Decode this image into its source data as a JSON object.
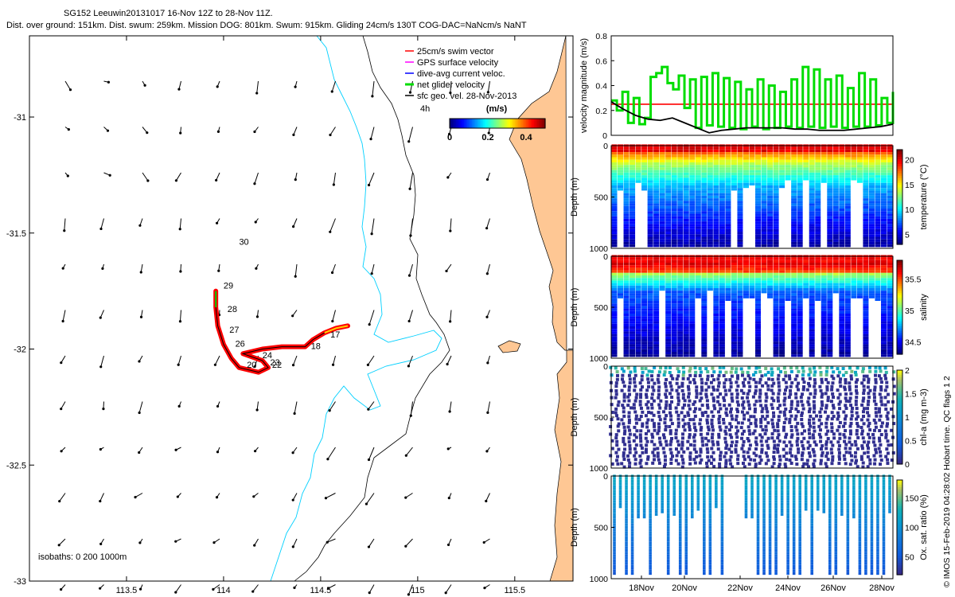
{
  "header": {
    "title_line1": "SG152 Leeuwin20131017 16-Nov 12Z to 28-Nov 11Z.",
    "title_line2": "Dist. over ground: 151km. Dist. swum: 259km. Mission DOG: 801km. Swum: 915km. Gliding 24cm/s 130T COG-DAC=NaNcm/s NaNT"
  },
  "chart_data": [
    {
      "type": "map",
      "name": "glider-track-map",
      "xlim": [
        113.0,
        115.8
      ],
      "ylim": [
        -33.0,
        -30.65
      ],
      "x_ticks": [
        "113.5",
        "114",
        "114.5",
        "115",
        "115.5"
      ],
      "y_ticks": [
        "-31",
        "-31.5",
        "-32",
        "-32.5",
        "-33"
      ],
      "legend": [
        {
          "label": "25cm/s swim vector",
          "color": "#ff0000"
        },
        {
          "label": "GPS surface velocity",
          "color": "#ff00ff"
        },
        {
          "label": "dive-avg current veloc.",
          "color": "#0000ff"
        },
        {
          "label": "net glider velocity",
          "color": "#00dd00"
        },
        {
          "label": "sfc geo. vel. 28-Nov-2013",
          "color": "#000000"
        }
      ],
      "legend_note": "4h",
      "colorbar": {
        "label": "(m/s)",
        "ticks": [
          "0",
          "0.2",
          "0.4"
        ],
        "range": [
          0,
          0.5
        ]
      },
      "isobaths_label": "isobaths: 0   200  1000m",
      "day_labels": [
        {
          "label": "30",
          "lon": 114.08,
          "lat": -31.55
        },
        {
          "label": "29",
          "lon": 114.0,
          "lat": -31.74
        },
        {
          "label": "28",
          "lon": 114.02,
          "lat": -31.84
        },
        {
          "label": "27",
          "lon": 114.03,
          "lat": -31.93
        },
        {
          "label": "26",
          "lon": 114.06,
          "lat": -31.99
        },
        {
          "label": "24",
          "lon": 114.2,
          "lat": -32.04
        },
        {
          "label": "23",
          "lon": 114.24,
          "lat": -32.07
        },
        {
          "label": "22",
          "lon": 114.25,
          "lat": -32.08
        },
        {
          "label": "20",
          "lon": 114.12,
          "lat": -32.08
        },
        {
          "label": "18",
          "lon": 114.45,
          "lat": -32.0
        },
        {
          "label": "17",
          "lon": 114.55,
          "lat": -31.95
        }
      ],
      "track_lonlat": [
        [
          114.64,
          -31.9
        ],
        [
          114.58,
          -31.91
        ],
        [
          114.52,
          -31.93
        ],
        [
          114.46,
          -31.96
        ],
        [
          114.42,
          -31.99
        ],
        [
          114.3,
          -31.99
        ],
        [
          114.2,
          -32.0
        ],
        [
          114.1,
          -32.02
        ],
        [
          114.2,
          -32.05
        ],
        [
          114.23,
          -32.08
        ],
        [
          114.18,
          -32.1
        ],
        [
          114.08,
          -32.08
        ],
        [
          114.04,
          -32.04
        ],
        [
          114.0,
          -31.98
        ],
        [
          113.97,
          -31.9
        ],
        [
          113.96,
          -31.82
        ],
        [
          113.96,
          -31.75
        ]
      ]
    },
    {
      "type": "line",
      "name": "velocity-magnitude",
      "ylabel": "velocity magnitude (m/s)",
      "ylim": [
        0,
        0.8
      ],
      "y_ticks": [
        "0",
        "0.2",
        "0.4",
        "0.6",
        "0.8"
      ],
      "series": [
        {
          "name": "swim",
          "color": "#ff0000",
          "values": [
            0.25,
            0.25
          ]
        },
        {
          "name": "net glider velocity",
          "color": "#00dd00",
          "values": [
            0.28,
            0.2,
            0.35,
            0.1,
            0.3,
            0.09,
            0.14,
            0.47,
            0.5,
            0.55,
            0.42,
            0.37,
            0.48,
            0.22,
            0.45,
            0.06,
            0.47,
            0.08,
            0.5,
            0.07,
            0.46,
            0.06,
            0.43,
            0.05,
            0.37,
            0.07,
            0.45,
            0.05,
            0.4,
            0.06,
            0.35,
            0.07,
            0.45,
            0.06,
            0.55,
            0.07,
            0.53,
            0.06,
            0.45,
            0.07,
            0.48,
            0.06,
            0.38,
            0.07,
            0.5,
            0.07,
            0.45,
            0.08,
            0.3,
            0.1,
            0.35
          ]
        },
        {
          "name": "sfc geo. vel.",
          "color": "#000000",
          "values": [
            0.27,
            0.21,
            0.16,
            0.13,
            0.12,
            0.14,
            0.1,
            0.06,
            0.02,
            0.04,
            0.05,
            0.06,
            0.06,
            0.06,
            0.06,
            0.05,
            0.05,
            0.04,
            0.04,
            0.04,
            0.05,
            0.06,
            0.07,
            0.09
          ]
        }
      ]
    },
    {
      "type": "scatter-section",
      "name": "temperature-section",
      "ylabel": "Depth (m)",
      "ylim": [
        1000,
        0
      ],
      "y_ticks": [
        "0",
        "500",
        "1000"
      ],
      "colorbar_label": "temperature (°C)",
      "colorbar_ticks": [
        "5",
        "10",
        "15",
        "20"
      ],
      "clim": [
        3,
        22
      ]
    },
    {
      "type": "scatter-section",
      "name": "salinity-section",
      "ylabel": "Depth (m)",
      "ylim": [
        1000,
        0
      ],
      "y_ticks": [
        "0",
        "500",
        "1000"
      ],
      "colorbar_label": "salinity",
      "colorbar_ticks": [
        "34.5",
        "35",
        "35.5"
      ],
      "clim": [
        34.3,
        35.8
      ]
    },
    {
      "type": "scatter-section",
      "name": "chl-a-section",
      "ylabel": "Depth (m)",
      "ylim": [
        1000,
        0
      ],
      "y_ticks": [
        "0",
        "500",
        "1000"
      ],
      "colorbar_label": "chl-a (mg m-3)",
      "colorbar_ticks": [
        "0",
        "0.5",
        "1",
        "1.5",
        "2"
      ],
      "clim": [
        0,
        2
      ]
    },
    {
      "type": "scatter-section",
      "name": "oxygen-section",
      "ylabel": "Depth (m)",
      "ylim": [
        1000,
        0
      ],
      "y_ticks": [
        "0",
        "500",
        "1000"
      ],
      "colorbar_label": "Ox. sat. ratio (%)",
      "colorbar_ticks": [
        "50",
        "100",
        "150"
      ],
      "clim": [
        20,
        180
      ],
      "x_ticks": [
        "18Nov",
        "20Nov",
        "22Nov",
        "24Nov",
        "26Nov",
        "28Nov"
      ]
    }
  ],
  "right_note": "© IMOS 15-Feb-2019 04:28:02 Hobart time. QC flags 1 2"
}
